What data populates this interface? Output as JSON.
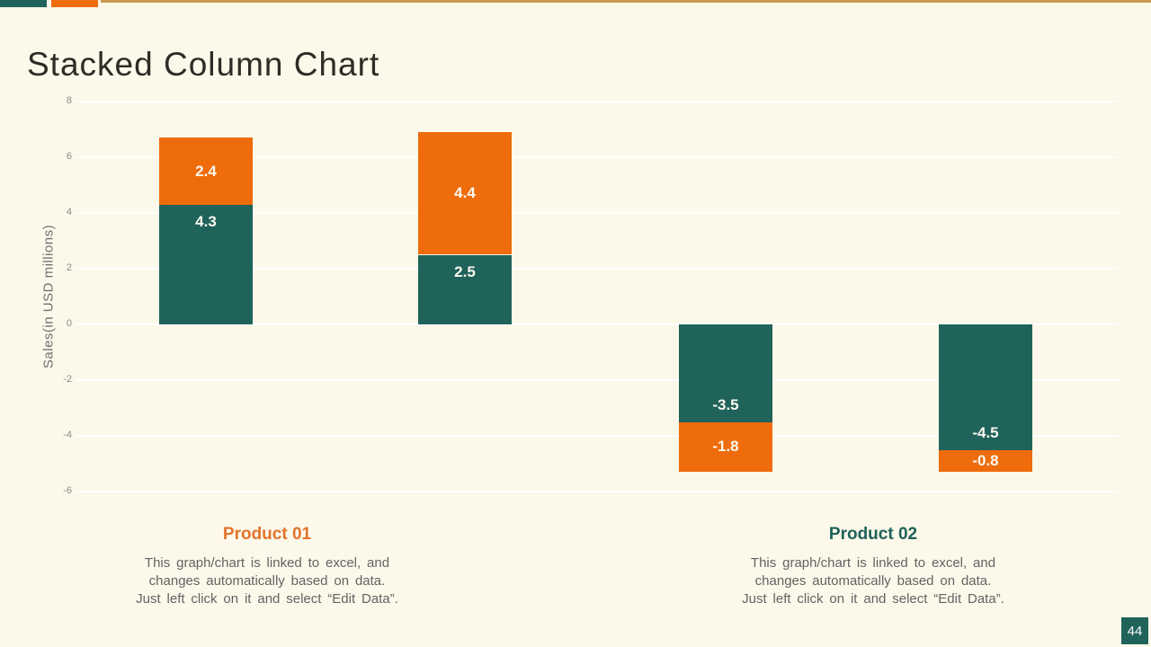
{
  "slide": {
    "title": "Stacked Column Chart",
    "page_number": "44"
  },
  "accents": {
    "teal": "#1F635A",
    "orange": "#EE6C0B",
    "gold": "#C79A50"
  },
  "chart_data": {
    "type": "bar",
    "subtype": "stacked-column",
    "title": "",
    "ylabel": "Sales(in USD millions)",
    "yticks": [
      8,
      6,
      4,
      2,
      0,
      -2,
      -4,
      -6
    ],
    "ylim": [
      -6.5,
      8.5
    ],
    "grid": "horizontal",
    "columns": 4,
    "series": [
      {
        "name": "teal-series",
        "color": "#1F635A",
        "values": [
          4.3,
          2.5,
          -3.5,
          -4.5
        ],
        "label_position": "inside-end"
      },
      {
        "name": "orange-series",
        "color": "#EE6C0B",
        "values": [
          2.4,
          4.4,
          -1.8,
          -0.8
        ],
        "label_position": "center"
      }
    ],
    "data_label_color": "#FAF8F0"
  },
  "groups": [
    {
      "label": "Product 01",
      "label_color": "#E2732C",
      "desc_lines": [
        "This graph/chart is linked to excel, and",
        "changes automatically based on data.",
        "Just left click on it and select “Edit Data”."
      ]
    },
    {
      "label": "Product 02",
      "label_color": "#1E6158",
      "desc_lines": [
        "This graph/chart is linked to excel, and",
        "changes automatically based on data.",
        "Just left click on it and select “Edit Data”."
      ]
    }
  ]
}
